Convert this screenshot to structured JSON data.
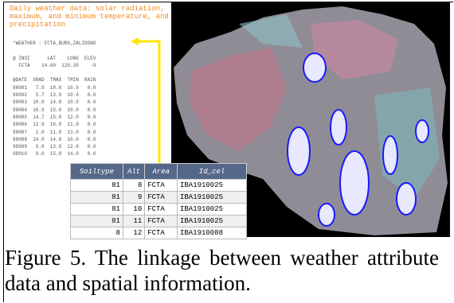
{
  "figure": {
    "header_text": "Daily weather data: solar radiation, maximum, and minimum temperature, and precipitation",
    "weather_lines": [
      "*WEATHER : FCTA,BURG,ZALIDONO",
      "",
      "@ INSI      LAT    LONG  ELEV",
      "  FCTA    14.00  120.30    -9",
      "",
      "@DATE  SRAD  TMAX  TMIN  RAIN",
      "98001   7.9  18.0  10.0   0.0",
      "98002   5.7  13.9  10.0   0.0",
      "98003  10.0  14.8  10.0   0.0",
      "98004  10.9  15.8  10.0   0.0",
      "98005  14.7  15.8  12.0   0.0",
      "98006  12.9  16.8  11.0   0.0",
      "98007   2.0  11.8  13.0   8.0",
      "98008  14.0  14.8  16.0   0.0",
      "98009   5.0  13.8  12.0   0.0",
      "98010   9.0  15.8  14.0   0.0"
    ],
    "table": {
      "headers": [
        "Soiltype",
        "Alt",
        "Area",
        "Id_cel"
      ],
      "rows": [
        [
          "81",
          "8",
          "FCTA",
          "IBA1910025"
        ],
        [
          "81",
          "9",
          "FCTA",
          "IBA1910025"
        ],
        [
          "81",
          "10",
          "FCTA",
          "IBA1910025"
        ],
        [
          "81",
          "11",
          "FCTA",
          "IBA1910025"
        ],
        [
          "8",
          "12",
          "FCTA",
          "IBA1910088"
        ]
      ]
    },
    "caption": "Figure 5. The linkage between weather attribute data and spatial information."
  }
}
